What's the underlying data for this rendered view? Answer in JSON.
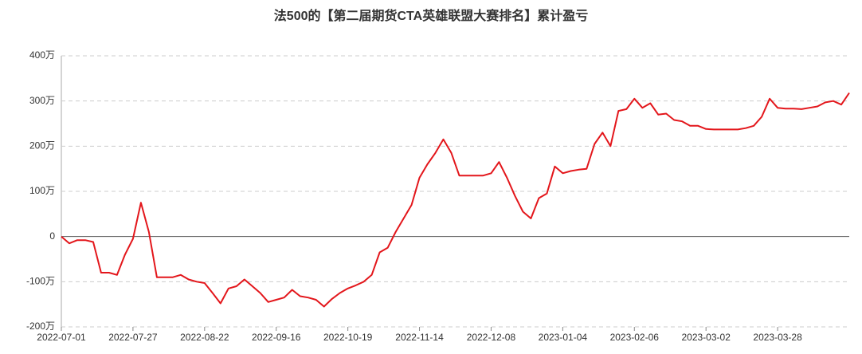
{
  "chart_data": {
    "type": "line",
    "title": "法500的【第二届期货CTA英雄联盟大赛排名】累计盈亏",
    "categories": [
      "2022-07-01",
      null,
      null,
      null,
      null,
      null,
      null,
      null,
      null,
      "2022-07-27",
      null,
      null,
      null,
      null,
      null,
      null,
      null,
      null,
      "2022-08-22",
      null,
      null,
      null,
      null,
      null,
      null,
      null,
      null,
      "2022-09-16",
      null,
      null,
      null,
      null,
      null,
      null,
      null,
      null,
      "2022-10-19",
      null,
      null,
      null,
      null,
      null,
      null,
      null,
      null,
      "2022-11-14",
      null,
      null,
      null,
      null,
      null,
      null,
      null,
      null,
      "2022-12-08",
      null,
      null,
      null,
      null,
      null,
      null,
      null,
      null,
      "2023-01-04",
      null,
      null,
      null,
      null,
      null,
      null,
      null,
      null,
      "2023-02-06",
      null,
      null,
      null,
      null,
      null,
      null,
      null,
      null,
      "2023-03-02",
      null,
      null,
      null,
      null,
      null,
      null,
      null,
      null,
      "2023-03-28",
      null,
      null,
      null,
      null,
      null,
      null,
      null,
      null,
      null
    ],
    "series": [
      {
        "color": "#e3161b",
        "values": [
          0,
          -15,
          -8,
          -8,
          -12,
          -80,
          -80,
          -85,
          -40,
          -5,
          75,
          10,
          -90,
          -90,
          -90,
          -85,
          -95,
          -100,
          -103,
          -125,
          -148,
          -115,
          -110,
          -95,
          -110,
          -125,
          -145,
          -140,
          -135,
          -118,
          -132,
          -135,
          -140,
          -155,
          -138,
          -125,
          -115,
          -108,
          -100,
          -85,
          -35,
          -25,
          10,
          40,
          70,
          130,
          160,
          185,
          215,
          185,
          135,
          135,
          135,
          135,
          140,
          165,
          130,
          90,
          55,
          40,
          85,
          95,
          155,
          140,
          145,
          148,
          150,
          205,
          230,
          200,
          278,
          282,
          305,
          285,
          295,
          270,
          272,
          258,
          255,
          245,
          245,
          238,
          237,
          237,
          237,
          237,
          240,
          245,
          265,
          305,
          285,
          283,
          283,
          282,
          285,
          288,
          297,
          300,
          292,
          318
        ]
      }
    ],
    "ylim": [
      -200,
      400
    ],
    "yticks": [
      {
        "value": -200,
        "label": "-200万"
      },
      {
        "value": -100,
        "label": "-100万"
      },
      0,
      {
        "value": 100,
        "label": "100万"
      },
      {
        "value": 200,
        "label": "200万"
      },
      {
        "value": 300,
        "label": "300万"
      },
      {
        "value": 400,
        "label": "400万"
      }
    ],
    "grid": true
  }
}
